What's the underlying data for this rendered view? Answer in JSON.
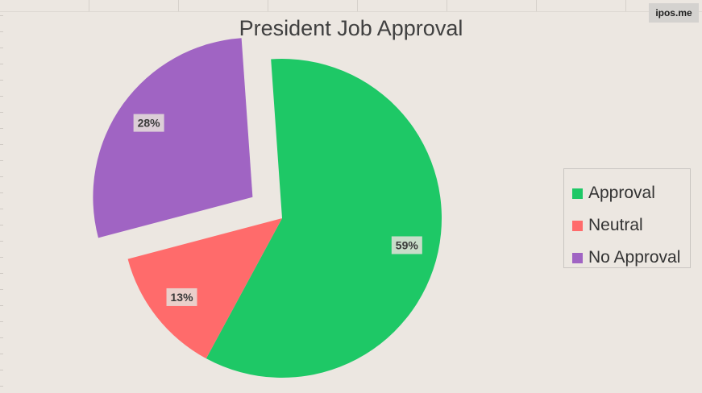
{
  "watermark": "ipos.me",
  "chart_data": {
    "type": "pie",
    "title": "President Job Approval",
    "legend_position": "right",
    "slices": [
      {
        "name": "Approval",
        "value": 59,
        "label": "59%",
        "color": "#1ec866",
        "exploded": false
      },
      {
        "name": "Neutral",
        "value": 13,
        "label": "13%",
        "color": "#ff6b6b",
        "exploded": false
      },
      {
        "name": "No Approval",
        "value": 28,
        "label": "28%",
        "color": "#a064c3",
        "exploded": true
      }
    ]
  }
}
